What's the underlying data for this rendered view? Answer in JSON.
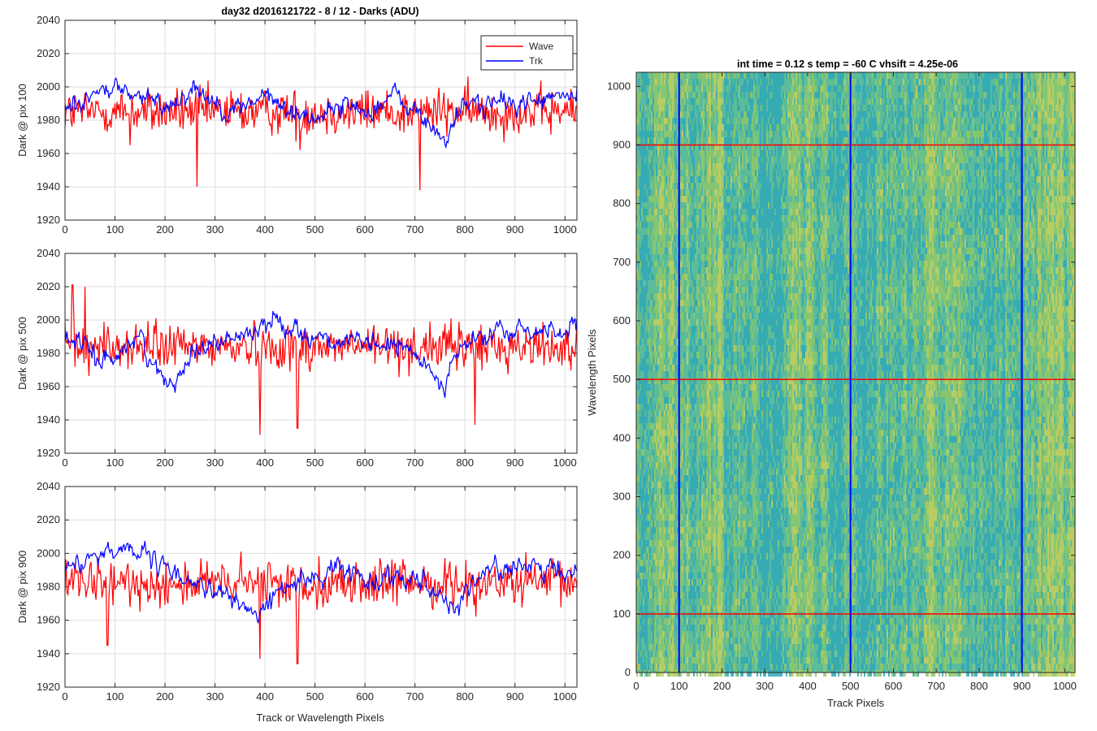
{
  "figure": {
    "title": "day32 d2016121722 - 8 / 12 - Darks (ADU)",
    "left_xlabel": "Track or Wavelength Pixels"
  },
  "colors": {
    "wave": "#ff0000",
    "trk": "#0000ff",
    "grid": "#dedede",
    "axis": "#262626"
  },
  "chart_data": [
    {
      "type": "line",
      "ylabel": "Dark @ pix 100",
      "xlim": [
        0,
        1024
      ],
      "ylim": [
        1920,
        2040
      ],
      "xticks": [
        0,
        100,
        200,
        300,
        400,
        500,
        600,
        700,
        800,
        900,
        1000
      ],
      "yticks": [
        1920,
        1940,
        1960,
        1980,
        2000,
        2020,
        2040
      ],
      "grid": true,
      "legend": "top-right",
      "series": [
        {
          "name": "Wave",
          "color": "#ff0000",
          "mean": 1985,
          "spread": 7,
          "spikes": [
            [
              264,
              1940
            ],
            [
              710,
              1938
            ],
            [
              130,
              1965
            ],
            [
              470,
              1962
            ]
          ]
        },
        {
          "name": "Trk",
          "color": "#0000ff",
          "mean": 1993,
          "spread": 4,
          "trend": [
            [
              0,
              1988
            ],
            [
              100,
              2000
            ],
            [
              200,
              1988
            ],
            [
              260,
              2000
            ],
            [
              330,
              1985
            ],
            [
              400,
              1995
            ],
            [
              450,
              1985
            ],
            [
              500,
              1982
            ],
            [
              560,
              1990
            ],
            [
              600,
              1985
            ],
            [
              660,
              1995
            ],
            [
              700,
              1985
            ],
            [
              760,
              1968
            ],
            [
              800,
              1990
            ],
            [
              900,
              1990
            ],
            [
              1024,
              1995
            ]
          ]
        }
      ]
    },
    {
      "type": "line",
      "ylabel": "Dark @ pix 500",
      "xlim": [
        0,
        1024
      ],
      "ylim": [
        1920,
        2040
      ],
      "xticks": [
        0,
        100,
        200,
        300,
        400,
        500,
        600,
        700,
        800,
        900,
        1000
      ],
      "yticks": [
        1920,
        1940,
        1960,
        1980,
        2000,
        2020,
        2040
      ],
      "grid": true,
      "series": [
        {
          "name": "Wave",
          "color": "#ff0000",
          "mean": 1984,
          "spread": 7,
          "spikes": [
            [
              15,
              2021
            ],
            [
              40,
              2020
            ],
            [
              390,
              1931
            ],
            [
              465,
              1935
            ],
            [
              820,
              1937
            ]
          ]
        },
        {
          "name": "Trk",
          "color": "#0000ff",
          "mean": 1988,
          "spread": 4,
          "trend": [
            [
              0,
              1990
            ],
            [
              80,
              1975
            ],
            [
              150,
              1990
            ],
            [
              200,
              1960
            ],
            [
              270,
              1985
            ],
            [
              350,
              1990
            ],
            [
              420,
              2000
            ],
            [
              500,
              1990
            ],
            [
              580,
              1985
            ],
            [
              660,
              1985
            ],
            [
              720,
              1975
            ],
            [
              750,
              1962
            ],
            [
              800,
              1985
            ],
            [
              860,
              1992
            ],
            [
              1024,
              1995
            ]
          ]
        }
      ]
    },
    {
      "type": "line",
      "ylabel": "Dark @ pix 900",
      "xlim": [
        0,
        1024
      ],
      "ylim": [
        1920,
        2040
      ],
      "xticks": [
        0,
        100,
        200,
        300,
        400,
        500,
        600,
        700,
        800,
        900,
        1000
      ],
      "yticks": [
        1920,
        1940,
        1960,
        1980,
        2000,
        2020,
        2040
      ],
      "grid": true,
      "series": [
        {
          "name": "Wave",
          "color": "#ff0000",
          "mean": 1982,
          "spread": 7,
          "spikes": [
            [
              85,
              1945
            ],
            [
              390,
              1937
            ],
            [
              465,
              1934
            ]
          ]
        },
        {
          "name": "Trk",
          "color": "#0000ff",
          "mean": 1988,
          "spread": 4,
          "trend": [
            [
              0,
              1992
            ],
            [
              120,
              2005
            ],
            [
              200,
              1990
            ],
            [
              300,
              1978
            ],
            [
              380,
              1963
            ],
            [
              450,
              1982
            ],
            [
              500,
              1985
            ],
            [
              550,
              1992
            ],
            [
              600,
              1985
            ],
            [
              700,
              1988
            ],
            [
              780,
              1968
            ],
            [
              850,
              1992
            ],
            [
              950,
              1990
            ],
            [
              1024,
              1988
            ]
          ]
        }
      ]
    },
    {
      "type": "heatmap",
      "title": "int time = 0.12 s    temp = -60 C    vhsift = 4.25e-06",
      "xlabel": "Track Pixels",
      "ylabel": "Wavelength Pixels",
      "xlim": [
        0,
        1024
      ],
      "ylim": [
        0,
        1024
      ],
      "xticks": [
        0,
        100,
        200,
        300,
        400,
        500,
        600,
        700,
        800,
        900,
        1000
      ],
      "yticks": [
        0,
        100,
        200,
        300,
        400,
        500,
        600,
        700,
        800,
        900,
        1000
      ],
      "colormap": [
        "#2fa8b8",
        "#4cb8a0",
        "#8ec86a",
        "#c8cf5a"
      ],
      "vertical_lines": {
        "color": "#0000ff",
        "x": [
          100,
          500,
          900
        ]
      },
      "horizontal_lines": {
        "color": "#ff0000",
        "y": [
          100,
          500,
          900
        ]
      }
    }
  ]
}
